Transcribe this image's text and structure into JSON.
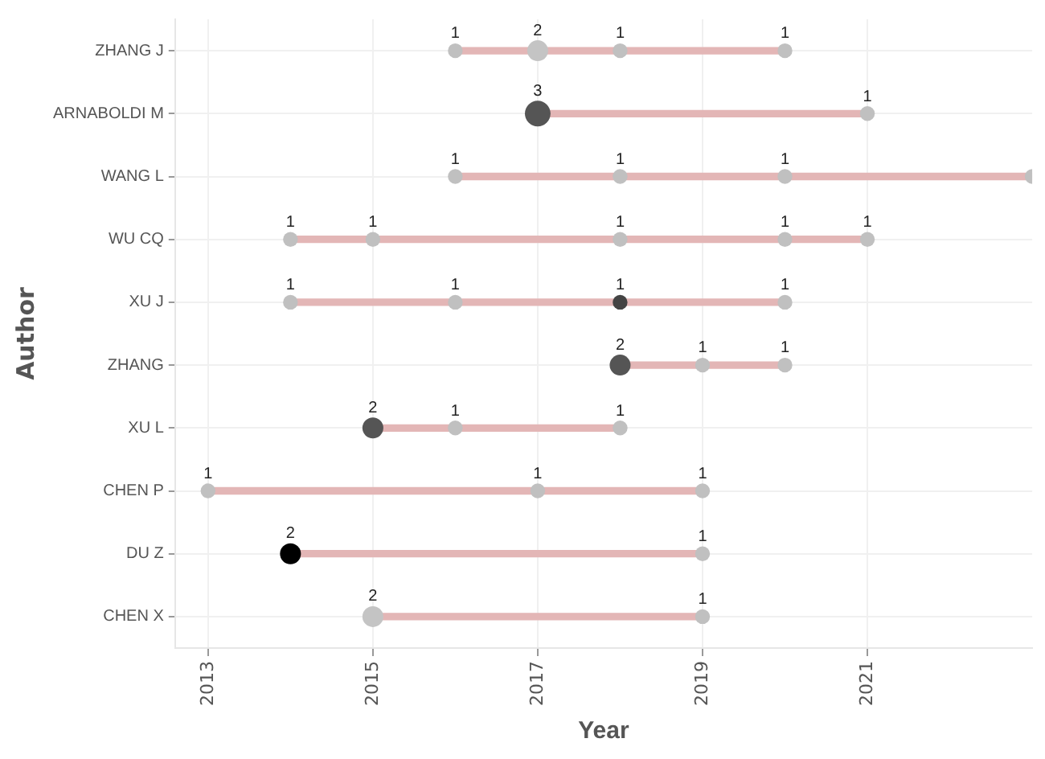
{
  "chart_data": {
    "type": "bar",
    "orientation": "horizontal",
    "xlabel": "Year",
    "ylabel": "Author",
    "categories": [
      "ZHANG J",
      "ARNABOLDI M",
      "WANG L",
      "WU CQ",
      "XU J",
      "ZHANG",
      "XU L",
      "CHEN P",
      "DU Z",
      "CHEN X"
    ],
    "base": [
      2016,
      2017,
      2016,
      2014,
      2014,
      2018,
      2015,
      2013,
      2014,
      2015
    ],
    "values": [
      4,
      4,
      7,
      7,
      6,
      2,
      3,
      6,
      5,
      4
    ],
    "color": "#e3b6b6",
    "xlim": [
      2012.6,
      2023
    ],
    "xticks": [
      2013,
      2015,
      2017,
      2019,
      2021
    ],
    "grid": true,
    "legend": false,
    "series": [
      {
        "type": "bubble",
        "x": [
          "ZHANG J",
          "ZHANG J",
          "ZHANG J",
          "ZHANG J"
        ],
        "values": [
          2016,
          2017,
          2018,
          2020
        ],
        "sizes": [
          1,
          2,
          1,
          1
        ],
        "value_labels": [
          "1",
          "2",
          "1",
          "1"
        ],
        "colors": [
          "#c0c0c0",
          "#c4c4c4",
          "#c0c0c0",
          "#c0c0c0"
        ]
      },
      {
        "type": "bubble",
        "x": [
          "ARNABOLDI M",
          "ARNABOLDI M"
        ],
        "values": [
          2017,
          2021
        ],
        "sizes": [
          3,
          1
        ],
        "value_labels": [
          "3",
          "1"
        ],
        "colors": [
          "#555555",
          "#c0c0c0"
        ]
      },
      {
        "type": "bubble",
        "x": [
          "WANG L",
          "WANG L",
          "WANG L",
          "WANG L"
        ],
        "values": [
          2016,
          2018,
          2020,
          2023
        ],
        "sizes": [
          1,
          1,
          1,
          null
        ],
        "value_labels": [
          "1",
          "1",
          "1",
          null
        ],
        "colors": [
          "#c0c0c0",
          "#c0c0c0",
          "#c0c0c0",
          "#c0c0c0"
        ]
      },
      {
        "type": "bubble",
        "x": [
          "WU CQ",
          "WU CQ",
          "WU CQ",
          "WU CQ",
          "WU CQ"
        ],
        "values": [
          2014,
          2015,
          2018,
          2020,
          2021
        ],
        "sizes": [
          1,
          1,
          1,
          1,
          1
        ],
        "value_labels": [
          "1",
          "1",
          "1",
          "1",
          "1"
        ],
        "colors": [
          "#c0c0c0",
          "#c0c0c0",
          "#c0c0c0",
          "#c0c0c0",
          "#c0c0c0"
        ]
      },
      {
        "type": "bubble",
        "x": [
          "XU J",
          "XU J",
          "XU J",
          "XU J"
        ],
        "values": [
          2014,
          2016,
          2018,
          2020
        ],
        "sizes": [
          1,
          1,
          1,
          1
        ],
        "value_labels": [
          "1",
          "1",
          "1",
          "1"
        ],
        "colors": [
          "#c0c0c0",
          "#c0c0c0",
          "#444444",
          "#c0c0c0"
        ]
      },
      {
        "type": "bubble",
        "x": [
          "ZHANG",
          "ZHANG",
          "ZHANG"
        ],
        "values": [
          2018,
          2019,
          2020
        ],
        "sizes": [
          2,
          1,
          1
        ],
        "value_labels": [
          "2",
          "1",
          "1"
        ],
        "colors": [
          "#555555",
          "#c0c0c0",
          "#c0c0c0"
        ]
      },
      {
        "type": "bubble",
        "x": [
          "XU L",
          "XU L",
          "XU L"
        ],
        "values": [
          2015,
          2016,
          2018
        ],
        "sizes": [
          2,
          1,
          1
        ],
        "value_labels": [
          "2",
          "1",
          "1"
        ],
        "colors": [
          "#555555",
          "#c0c0c0",
          "#c0c0c0"
        ]
      },
      {
        "type": "bubble",
        "x": [
          "CHEN P",
          "CHEN P",
          "CHEN P"
        ],
        "values": [
          2013,
          2017,
          2019
        ],
        "sizes": [
          1,
          1,
          1
        ],
        "value_labels": [
          "1",
          "1",
          "1"
        ],
        "colors": [
          "#c0c0c0",
          "#c0c0c0",
          "#c0c0c0"
        ]
      },
      {
        "type": "bubble",
        "x": [
          "DU Z",
          "DU Z"
        ],
        "values": [
          2014,
          2019
        ],
        "sizes": [
          2,
          1
        ],
        "value_labels": [
          "2",
          "1"
        ],
        "colors": [
          "#000000",
          "#c0c0c0"
        ]
      },
      {
        "type": "bubble",
        "x": [
          "CHEN X",
          "CHEN X"
        ],
        "values": [
          2015,
          2019
        ],
        "sizes": [
          2,
          1
        ],
        "value_labels": [
          "2",
          "1"
        ],
        "colors": [
          "#c4c4c4",
          "#c0c0c0"
        ]
      }
    ]
  }
}
